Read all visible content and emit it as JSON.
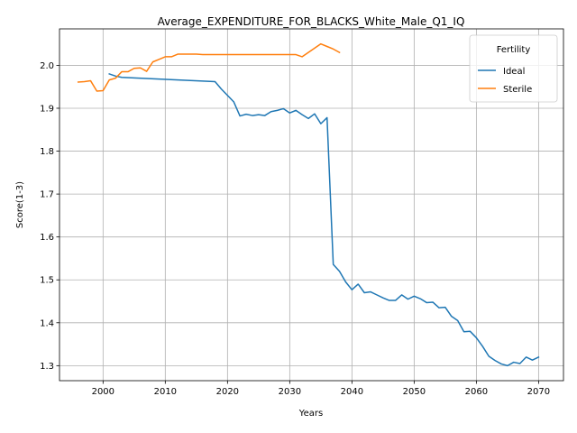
{
  "chart_data": {
    "type": "line",
    "title": "Average_EXPENDITURE_FOR_BLACKS_White_Male_Q1_IQ",
    "xlabel": "Years",
    "ylabel": "Score(1-3)",
    "xlim": [
      1993,
      2074
    ],
    "ylim": [
      1.265,
      2.085
    ],
    "xticks": [
      2000,
      2010,
      2020,
      2030,
      2040,
      2050,
      2060,
      2070
    ],
    "yticks": [
      1.3,
      1.4,
      1.5,
      1.6,
      1.7,
      1.8,
      1.9,
      2.0
    ],
    "ytick_labels": [
      "1.3",
      "1.4",
      "1.5",
      "1.6",
      "1.7",
      "1.8",
      "1.9",
      "2.0"
    ],
    "grid": true,
    "legend": {
      "title": "Fertility",
      "position": "top-right"
    },
    "series": [
      {
        "name": "Ideal",
        "color": "#1f77b4",
        "x": [
          2001,
          2002,
          2003,
          2018,
          2019,
          2020,
          2021,
          2022,
          2023,
          2024,
          2025,
          2026,
          2027,
          2028,
          2029,
          2030,
          2031,
          2032,
          2033,
          2034,
          2035,
          2036,
          2037,
          2038,
          2039,
          2040,
          2041,
          2042,
          2043,
          2044,
          2045,
          2046,
          2047,
          2048,
          2049,
          2050,
          2051,
          2052,
          2053,
          2054,
          2055,
          2056,
          2057,
          2058,
          2059,
          2060,
          2061,
          2062,
          2063,
          2064,
          2065,
          2066,
          2067,
          2068,
          2069,
          2070
        ],
        "values": [
          1.98,
          1.975,
          1.972,
          1.962,
          1.945,
          1.93,
          1.915,
          1.882,
          1.886,
          1.883,
          1.885,
          1.883,
          1.892,
          1.895,
          1.899,
          1.889,
          1.895,
          1.885,
          1.876,
          1.887,
          1.864,
          1.878,
          1.536,
          1.52,
          1.495,
          1.477,
          1.49,
          1.47,
          1.472,
          1.465,
          1.458,
          1.452,
          1.452,
          1.465,
          1.455,
          1.462,
          1.456,
          1.447,
          1.448,
          1.435,
          1.436,
          1.415,
          1.405,
          1.379,
          1.38,
          1.365,
          1.345,
          1.322,
          1.312,
          1.304,
          1.3,
          1.308,
          1.305,
          1.32,
          1.313,
          1.32
        ]
      },
      {
        "name": "Sterile",
        "color": "#ff7f0e",
        "x": [
          1996,
          1997,
          1998,
          1999,
          2000,
          2001,
          2002,
          2003,
          2004,
          2005,
          2006,
          2007,
          2008,
          2009,
          2010,
          2011,
          2012,
          2013,
          2014,
          2015,
          2016,
          2017,
          2018,
          2019,
          2020,
          2021,
          2022,
          2023,
          2024,
          2025,
          2026,
          2027,
          2028,
          2029,
          2030,
          2031,
          2032,
          2033,
          2034,
          2035,
          2036,
          2037,
          2038
        ],
        "values": [
          1.961,
          1.962,
          1.964,
          1.94,
          1.941,
          1.966,
          1.97,
          1.985,
          1.985,
          1.993,
          1.994,
          1.986,
          2.008,
          2.014,
          2.02,
          2.02,
          2.026,
          2.026,
          2.026,
          2.026,
          2.025,
          2.025,
          2.025,
          2.025,
          2.025,
          2.025,
          2.025,
          2.025,
          2.025,
          2.025,
          2.025,
          2.025,
          2.025,
          2.025,
          2.025,
          2.025,
          2.02,
          2.03,
          2.04,
          2.05,
          2.044,
          2.038,
          2.03
        ]
      }
    ]
  }
}
